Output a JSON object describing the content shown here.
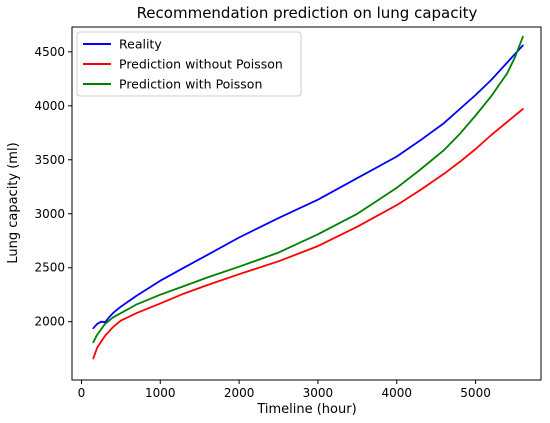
{
  "chart_data": {
    "type": "line",
    "title": "Recommendation prediction on lung capacity",
    "xlabel": "Timeline (hour)",
    "ylabel": "Lung capacity (ml)",
    "xlim": [
      -120,
      5830
    ],
    "ylim": [
      1460,
      4730
    ],
    "xticks": [
      0,
      1000,
      2000,
      3000,
      4000,
      5000
    ],
    "yticks": [
      2000,
      2500,
      3000,
      3500,
      4000,
      4500
    ],
    "grid": false,
    "legend_position": "top-left",
    "series": [
      {
        "name": "Reality",
        "color": "#0000ff",
        "x": [
          150,
          200,
          250,
          300,
          350,
          400,
          500,
          700,
          1000,
          1300,
          1600,
          2000,
          2500,
          3000,
          3500,
          4000,
          4300,
          4600,
          4800,
          5000,
          5200,
          5400,
          5600
        ],
        "y": [
          1940,
          1980,
          2000,
          1995,
          2040,
          2080,
          2140,
          2240,
          2380,
          2500,
          2620,
          2780,
          2960,
          3130,
          3330,
          3530,
          3680,
          3840,
          3970,
          4100,
          4240,
          4400,
          4560
        ]
      },
      {
        "name": "Prediction without Poisson",
        "color": "#ff0000",
        "x": [
          150,
          200,
          300,
          400,
          500,
          700,
          1000,
          1300,
          1600,
          2000,
          2500,
          3000,
          3500,
          4000,
          4300,
          4600,
          4800,
          5000,
          5200,
          5400,
          5600
        ],
        "y": [
          1660,
          1760,
          1870,
          1950,
          2010,
          2080,
          2170,
          2260,
          2340,
          2440,
          2560,
          2700,
          2880,
          3080,
          3220,
          3370,
          3480,
          3600,
          3730,
          3850,
          3970
        ]
      },
      {
        "name": "Prediction with Poisson",
        "color": "#008000",
        "x": [
          150,
          200,
          300,
          400,
          500,
          700,
          1000,
          1300,
          1600,
          2000,
          2500,
          3000,
          3500,
          4000,
          4300,
          4600,
          4800,
          5000,
          5200,
          5400,
          5500,
          5600
        ],
        "y": [
          1810,
          1880,
          1980,
          2040,
          2080,
          2160,
          2250,
          2330,
          2410,
          2510,
          2640,
          2810,
          3000,
          3240,
          3410,
          3590,
          3740,
          3910,
          4090,
          4300,
          4450,
          4640
        ]
      }
    ]
  }
}
